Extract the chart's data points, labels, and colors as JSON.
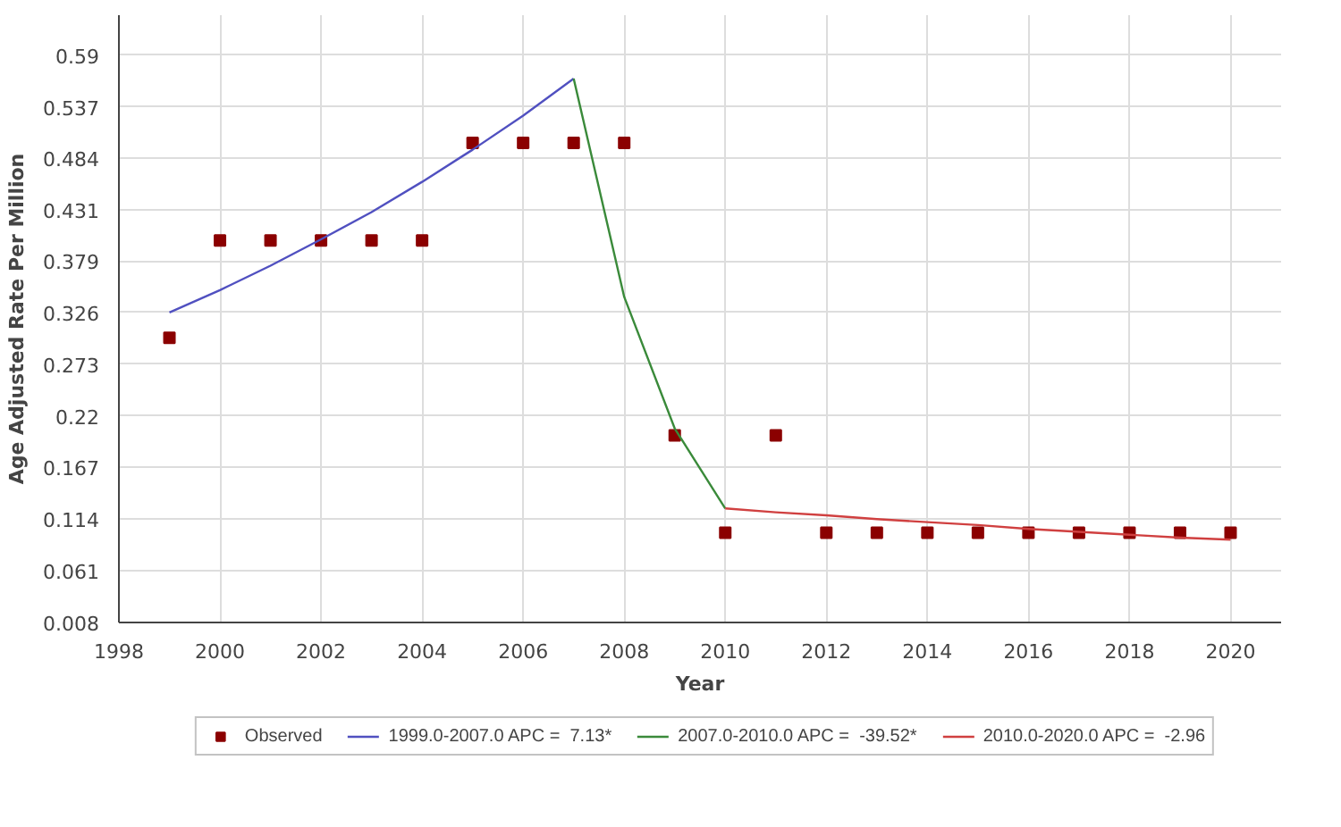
{
  "chart_data": {
    "type": "line",
    "xlabel": "Year",
    "ylabel": "Age Adjusted Rate Per Million",
    "xlim": [
      1998,
      2021
    ],
    "xticks": [
      1998,
      2000,
      2002,
      2004,
      2006,
      2008,
      2010,
      2012,
      2014,
      2016,
      2018,
      2020
    ],
    "ylim": [
      0.008,
      0.631
    ],
    "yticks": [
      0.008,
      0.061,
      0.114,
      0.167,
      0.22,
      0.273,
      0.326,
      0.379,
      0.431,
      0.484,
      0.537,
      0.59
    ],
    "grid": true,
    "legend": "bottom",
    "series": [
      {
        "name": "Observed",
        "type": "scatter",
        "marker": "square",
        "color": "#8b0000",
        "x": [
          1999,
          2000,
          2001,
          2002,
          2003,
          2004,
          2005,
          2006,
          2007,
          2008,
          2009,
          2010,
          2011,
          2012,
          2013,
          2014,
          2015,
          2016,
          2017,
          2018,
          2019,
          2020
        ],
        "values": [
          0.3,
          0.4,
          0.4,
          0.4,
          0.4,
          0.4,
          0.5,
          0.5,
          0.5,
          0.5,
          0.2,
          0.1,
          0.2,
          0.1,
          0.1,
          0.1,
          0.1,
          0.1,
          0.1,
          0.1,
          0.1,
          0.1
        ]
      },
      {
        "name": "1999.0-2007.0 APC =  7.13*",
        "color": "#5050c0",
        "x": [
          1999,
          2000,
          2001,
          2002,
          2003,
          2004,
          2005,
          2006,
          2007
        ],
        "values": [
          0.326,
          0.349,
          0.374,
          0.401,
          0.429,
          0.46,
          0.493,
          0.528,
          0.566
        ]
      },
      {
        "name": "2007.0-2010.0 APC =  -39.52*",
        "color": "#3a8a3a",
        "x": [
          2007,
          2008,
          2009,
          2010
        ],
        "values": [
          0.566,
          0.342,
          0.207,
          0.125
        ]
      },
      {
        "name": "2010.0-2020.0 APC =  -2.96",
        "color": "#d04040",
        "x": [
          2010,
          2011,
          2012,
          2013,
          2014,
          2015,
          2016,
          2017,
          2018,
          2019,
          2020
        ],
        "values": [
          0.125,
          0.121,
          0.118,
          0.114,
          0.111,
          0.108,
          0.104,
          0.101,
          0.098,
          0.095,
          0.093
        ]
      }
    ]
  }
}
